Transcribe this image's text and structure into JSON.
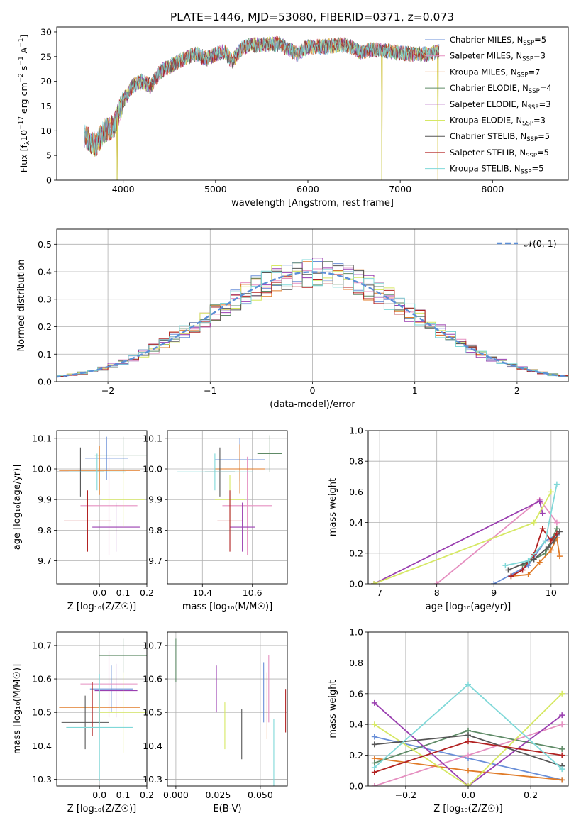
{
  "figure": {
    "title": "PLATE=1446, MJD=53080, FIBERID=0371, z=0.073"
  },
  "series_styles": [
    {
      "name": "Chabrier MILES, N$_{SSP}$=5",
      "label_main": "Chabrier MILES, N",
      "label_sub": "SSP",
      "label_tail": "=5",
      "color": "#6a8fd8"
    },
    {
      "name": "Salpeter MILES, N$_{SSP}$=3",
      "label_main": "Salpeter MILES, N",
      "label_sub": "SSP",
      "label_tail": "=3",
      "color": "#e58fc0"
    },
    {
      "name": "Kroupa MILES, N$_{SSP}$=7",
      "label_main": "Kroupa MILES, N",
      "label_sub": "SSP",
      "label_tail": "=7",
      "color": "#e07b28"
    },
    {
      "name": "Chabrier ELODIE, N$_{SSP}$=4",
      "label_main": "Chabrier ELODIE, N",
      "label_sub": "SSP",
      "label_tail": "=4",
      "color": "#5e8a66"
    },
    {
      "name": "Salpeter ELODIE, N$_{SSP}$=3",
      "label_main": "Salpeter ELODIE, N",
      "label_sub": "SSP",
      "label_tail": "=3",
      "color": "#9a3fb0"
    },
    {
      "name": "Kroupa ELODIE, N$_{SSP}$=3",
      "label_main": "Kroupa ELODIE, N",
      "label_sub": "SSP",
      "label_tail": "=3",
      "color": "#d6e864"
    },
    {
      "name": "Chabrier STELIB, N$_{SSP}$=5",
      "label_main": "Chabrier STELIB, N",
      "label_sub": "SSP",
      "label_tail": "=5",
      "color": "#555555"
    },
    {
      "name": "Salpeter STELIB, N$_{SSP}$=5",
      "label_main": "Salpeter STELIB, N",
      "label_sub": "SSP",
      "label_tail": "=5",
      "color": "#b22222"
    },
    {
      "name": "Kroupa STELIB, N$_{SSP}$=5",
      "label_main": "Kroupa STELIB, N",
      "label_sub": "SSP",
      "label_tail": "=5",
      "color": "#7fd8d8"
    }
  ],
  "chart_data": [
    {
      "id": "spectrum",
      "type": "line",
      "xlabel": "wavelength [Angstrom, rest frame]",
      "ylabel_main": "Flux [f",
      "ylabel_lambda": "λ",
      "ylabel_mid": "10",
      "ylabel_exp": "−17",
      "ylabel_unit": " erg cm",
      "ylabel_exp2": "−2",
      "ylabel_s": " s",
      "ylabel_exp3": "−1",
      "ylabel_A": " A",
      "ylabel_exp4": "−1",
      "ylabel_close": "]",
      "xlim": [
        3280,
        8820
      ],
      "ylim": [
        0,
        31
      ],
      "xticks": [
        4000,
        5000,
        6000,
        7000,
        8000
      ],
      "yticks": [
        0,
        5,
        10,
        15,
        20,
        25,
        30
      ],
      "legend": "right",
      "anchors": [
        [
          3580,
          9
        ],
        [
          3700,
          7
        ],
        [
          3800,
          10
        ],
        [
          3900,
          11
        ],
        [
          4000,
          16
        ],
        [
          4100,
          19
        ],
        [
          4200,
          20
        ],
        [
          4300,
          19
        ],
        [
          4400,
          22
        ],
        [
          4500,
          23
        ],
        [
          4600,
          24
        ],
        [
          4700,
          25
        ],
        [
          4800,
          25.5
        ],
        [
          4900,
          24.5
        ],
        [
          5000,
          25.5
        ],
        [
          5100,
          26
        ],
        [
          5175,
          24
        ],
        [
          5300,
          27
        ],
        [
          5500,
          27.5
        ],
        [
          5700,
          27.5
        ],
        [
          5890,
          25.5
        ],
        [
          6000,
          27
        ],
        [
          6200,
          27
        ],
        [
          6400,
          27.5
        ],
        [
          6563,
          26
        ],
        [
          6700,
          26.5
        ],
        [
          6900,
          26
        ],
        [
          7100,
          25.5
        ],
        [
          7300,
          25.5
        ],
        [
          7420,
          26
        ]
      ],
      "dips": [
        [
          3934,
          0
        ],
        [
          6800,
          0
        ],
        [
          7410,
          0
        ]
      ],
      "series": [
        {
          "name": "Chabrier MILES, N$_{SSP}$=5",
          "model": true
        },
        {
          "name": "Salpeter MILES, N$_{SSP}$=3",
          "model": true
        },
        {
          "name": "Kroupa MILES, N$_{SSP}$=7",
          "model": true
        },
        {
          "name": "Chabrier ELODIE, N$_{SSP}$=4",
          "model": true
        },
        {
          "name": "Salpeter ELODIE, N$_{SSP}$=3",
          "model": true
        },
        {
          "name": "Kroupa ELODIE, N$_{SSP}$=3",
          "model": true
        },
        {
          "name": "Chabrier STELIB, N$_{SSP}$=5",
          "model": true
        },
        {
          "name": "Salpeter STELIB, N$_{SSP}$=5",
          "model": true
        },
        {
          "name": "Kroupa STELIB, N$_{SSP}$=5",
          "model": true
        }
      ]
    },
    {
      "id": "residuals",
      "type": "histogram",
      "xlabel": "(data-model)/error",
      "ylabel": "Normed distribution",
      "xlim": [
        -2.5,
        2.5
      ],
      "ylim": [
        0,
        0.555
      ],
      "xticks": [
        -2,
        -1,
        0,
        1,
        2
      ],
      "yticks": [
        0.0,
        0.1,
        0.2,
        0.3,
        0.4,
        0.5
      ],
      "grid": true,
      "legend": "top-right",
      "gaussian_label": "𝒩(0, 1)",
      "gaussian_color": "#5b8ed6",
      "bin_width": 0.1
    },
    {
      "id": "age-vs-Z",
      "type": "errorbar",
      "xlabel": "Z [log₁₀(Z/Z☉)]",
      "ylabel": "age  [log₁₀(age/yr)]",
      "xlim": [
        -0.18,
        0.2
      ],
      "ylim": [
        9.625,
        10.125
      ],
      "xticks": [
        0.0,
        0.1,
        0.2
      ],
      "yticks": [
        9.7,
        9.8,
        9.9,
        10.0,
        10.1
      ],
      "grid": true,
      "points": [
        {
          "series": 0,
          "x": 0.03,
          "y": 10.035,
          "xerr": 0.09,
          "yerr": 0.07
        },
        {
          "series": 1,
          "x": 0.04,
          "y": 9.88,
          "xerr": 0.12,
          "yerr": 0.16
        },
        {
          "series": 2,
          "x": 0.0,
          "y": 9.995,
          "xerr": 0.17,
          "yerr": 0.08
        },
        {
          "series": 3,
          "x": 0.1,
          "y": 10.045,
          "xerr": 0.12,
          "yerr": 0.06
        },
        {
          "series": 4,
          "x": 0.07,
          "y": 9.81,
          "xerr": 0.1,
          "yerr": 0.08
        },
        {
          "series": 5,
          "x": 0.1,
          "y": 9.9,
          "xerr": 0.09,
          "yerr": 0.09
        },
        {
          "series": 6,
          "x": -0.08,
          "y": 9.99,
          "xerr": 0.1,
          "yerr": 0.08
        },
        {
          "series": 7,
          "x": -0.05,
          "y": 9.83,
          "xerr": 0.1,
          "yerr": 0.1
        },
        {
          "series": 8,
          "x": -0.01,
          "y": 9.99,
          "xerr": 0.12,
          "yerr": 0.06
        }
      ]
    },
    {
      "id": "age-vs-mass",
      "type": "errorbar",
      "xlabel": "mass [log₁₀(M/M☉)]",
      "ylabel": "",
      "xlim": [
        10.26,
        10.74
      ],
      "ylim": [
        9.625,
        10.125
      ],
      "xticks": [
        10.4,
        10.6
      ],
      "yticks": [
        9.7,
        9.8,
        9.9,
        10.0,
        10.1
      ],
      "grid": true,
      "points": [
        {
          "series": 0,
          "x": 10.55,
          "y": 10.03,
          "xerr": 0.1,
          "yerr": 0.07
        },
        {
          "series": 1,
          "x": 10.58,
          "y": 9.88,
          "xerr": 0.1,
          "yerr": 0.16
        },
        {
          "series": 2,
          "x": 10.55,
          "y": 10.0,
          "xerr": 0.1,
          "yerr": 0.08
        },
        {
          "series": 3,
          "x": 10.67,
          "y": 10.05,
          "xerr": 0.05,
          "yerr": 0.06
        },
        {
          "series": 4,
          "x": 10.56,
          "y": 9.81,
          "xerr": 0.05,
          "yerr": 0.08
        },
        {
          "series": 5,
          "x": 10.51,
          "y": 9.9,
          "xerr": 0.06,
          "yerr": 0.08
        },
        {
          "series": 6,
          "x": 10.47,
          "y": 9.99,
          "xerr": 0.06,
          "yerr": 0.08
        },
        {
          "series": 7,
          "x": 10.51,
          "y": 9.83,
          "xerr": 0.05,
          "yerr": 0.1
        },
        {
          "series": 8,
          "x": 10.45,
          "y": 9.99,
          "xerr": 0.15,
          "yerr": 0.06
        }
      ]
    },
    {
      "id": "weight-vs-age",
      "type": "line",
      "xlabel": "age  [log₁₀(age/yr)]",
      "ylabel": "mass weight",
      "xlim": [
        6.8,
        10.3
      ],
      "ylim": [
        0,
        1.0
      ],
      "xticks": [
        7,
        8,
        9,
        10
      ],
      "yticks": [
        0.0,
        0.2,
        0.4,
        0.6,
        0.8,
        1.0
      ],
      "grid": true,
      "series": [
        {
          "series": 0,
          "x": [
            9.0,
            9.6,
            9.9,
            10.1
          ],
          "y": [
            0.0,
            0.12,
            0.28,
            0.32
          ]
        },
        {
          "series": 1,
          "x": [
            8.0,
            9.8,
            10.1
          ],
          "y": [
            0.0,
            0.55,
            0.4
          ]
        },
        {
          "series": 2,
          "x": [
            9.3,
            9.6,
            9.8,
            10.0,
            10.1,
            10.15
          ],
          "y": [
            0.05,
            0.06,
            0.14,
            0.22,
            0.3,
            0.18
          ]
        },
        {
          "series": 3,
          "x": [
            9.5,
            9.9,
            10.1
          ],
          "y": [
            0.12,
            0.2,
            0.36
          ]
        },
        {
          "series": 4,
          "x": [
            6.9,
            9.8,
            9.85
          ],
          "y": [
            0.0,
            0.54,
            0.46
          ]
        },
        {
          "series": 5,
          "x": [
            6.9,
            9.7,
            10.0
          ],
          "y": [
            0.0,
            0.4,
            0.6
          ]
        },
        {
          "series": 6,
          "x": [
            9.25,
            9.7,
            9.95,
            10.05,
            10.15
          ],
          "y": [
            0.09,
            0.16,
            0.24,
            0.28,
            0.34
          ]
        },
        {
          "series": 7,
          "x": [
            9.3,
            9.5,
            9.7,
            9.85,
            10.0,
            10.1
          ],
          "y": [
            0.05,
            0.09,
            0.19,
            0.36,
            0.28,
            0.33
          ]
        },
        {
          "series": 8,
          "x": [
            9.2,
            9.6,
            9.9,
            10.1
          ],
          "y": [
            0.12,
            0.15,
            0.28,
            0.65
          ]
        }
      ]
    },
    {
      "id": "mass-vs-Z",
      "type": "errorbar",
      "xlabel": "Z [log₁₀(Z/Z☉)]",
      "ylabel": "mass [log₁₀(M/M☉)]",
      "xlim": [
        -0.18,
        0.2
      ],
      "ylim": [
        10.28,
        10.74
      ],
      "xticks": [
        0.0,
        0.1,
        0.2
      ],
      "yticks": [
        10.3,
        10.4,
        10.5,
        10.6,
        10.7
      ],
      "grid": true,
      "points": [
        {
          "series": 0,
          "x": 0.05,
          "y": 10.57,
          "xerr": 0.09,
          "yerr": 0.07
        },
        {
          "series": 1,
          "x": 0.04,
          "y": 10.585,
          "xerr": 0.12,
          "yerr": 0.1
        },
        {
          "series": 2,
          "x": 0.0,
          "y": 10.515,
          "xerr": 0.17,
          "yerr": 0.05
        },
        {
          "series": 3,
          "x": 0.1,
          "y": 10.67,
          "xerr": 0.1,
          "yerr": 0.05
        },
        {
          "series": 4,
          "x": 0.07,
          "y": 10.565,
          "xerr": 0.09,
          "yerr": 0.08
        },
        {
          "series": 5,
          "x": 0.1,
          "y": 10.5,
          "xerr": 0.1,
          "yerr": 0.12
        },
        {
          "series": 6,
          "x": -0.06,
          "y": 10.47,
          "xerr": 0.1,
          "yerr": 0.08
        },
        {
          "series": 7,
          "x": -0.03,
          "y": 10.51,
          "xerr": 0.13,
          "yerr": 0.08
        },
        {
          "series": 8,
          "x": 0.0,
          "y": 10.455,
          "xerr": 0.14,
          "yerr": 0.16
        }
      ]
    },
    {
      "id": "mass-vs-EBV",
      "type": "errorbar",
      "xlabel": "E(B-V)",
      "ylabel": "",
      "xlim": [
        -0.005,
        0.066
      ],
      "ylim": [
        10.28,
        10.74
      ],
      "xticks": [
        0.0,
        0.025,
        0.05
      ],
      "xtick_labels": [
        "0.000",
        "0.025",
        "0.050"
      ],
      "yticks": [
        10.3,
        10.4,
        10.5,
        10.6,
        10.7
      ],
      "grid": true,
      "points": [
        {
          "series": 0,
          "x": 0.052,
          "y": 10.56,
          "xerr": 0.0,
          "yerr": 0.09
        },
        {
          "series": 1,
          "x": 0.055,
          "y": 10.57,
          "xerr": 0.0,
          "yerr": 0.1
        },
        {
          "series": 2,
          "x": 0.054,
          "y": 10.52,
          "xerr": 0.0,
          "yerr": 0.1
        },
        {
          "series": 3,
          "x": 0.0,
          "y": 10.655,
          "xerr": 0.0,
          "yerr": 0.065
        },
        {
          "series": 4,
          "x": 0.024,
          "y": 10.57,
          "xerr": 0.0,
          "yerr": 0.07
        },
        {
          "series": 5,
          "x": 0.029,
          "y": 10.46,
          "xerr": 0.0,
          "yerr": 0.07
        },
        {
          "series": 6,
          "x": 0.039,
          "y": 10.435,
          "xerr": 0.0,
          "yerr": 0.075
        },
        {
          "series": 7,
          "x": 0.065,
          "y": 10.505,
          "xerr": 0.0,
          "yerr": 0.065
        },
        {
          "series": 8,
          "x": 0.058,
          "y": 10.37,
          "xerr": 0.0,
          "yerr": 0.11
        }
      ]
    },
    {
      "id": "weight-vs-Z",
      "type": "line",
      "xlabel": "Z [log₁₀(Z/Z☉)]",
      "ylabel": "mass weight",
      "xlim": [
        -0.32,
        0.32
      ],
      "ylim": [
        0,
        1.0
      ],
      "xticks": [
        -0.2,
        0.0,
        0.2
      ],
      "yticks": [
        0.0,
        0.2,
        0.4,
        0.6,
        0.8,
        1.0
      ],
      "grid": true,
      "series": [
        {
          "series": 0,
          "x": [
            -0.3,
            0.0,
            0.3
          ],
          "y": [
            0.32,
            0.18,
            0.04
          ]
        },
        {
          "series": 1,
          "x": [
            -0.3,
            0.0,
            0.3
          ],
          "y": [
            0.0,
            0.2,
            0.4
          ]
        },
        {
          "series": 2,
          "x": [
            -0.3,
            0.0,
            0.3
          ],
          "y": [
            0.18,
            0.1,
            0.04
          ]
        },
        {
          "series": 3,
          "x": [
            -0.3,
            0.0,
            0.3
          ],
          "y": [
            0.15,
            0.36,
            0.24
          ]
        },
        {
          "series": 4,
          "x": [
            -0.3,
            0.0,
            0.3
          ],
          "y": [
            0.54,
            0.0,
            0.46
          ]
        },
        {
          "series": 5,
          "x": [
            -0.3,
            0.0,
            0.3
          ],
          "y": [
            0.4,
            0.0,
            0.6
          ]
        },
        {
          "series": 6,
          "x": [
            -0.3,
            0.0,
            0.3
          ],
          "y": [
            0.27,
            0.33,
            0.13
          ]
        },
        {
          "series": 7,
          "x": [
            -0.3,
            0.0,
            0.3
          ],
          "y": [
            0.09,
            0.29,
            0.2
          ]
        },
        {
          "series": 8,
          "x": [
            -0.3,
            0.0,
            0.3
          ],
          "y": [
            0.12,
            0.66,
            0.11
          ]
        }
      ]
    }
  ]
}
